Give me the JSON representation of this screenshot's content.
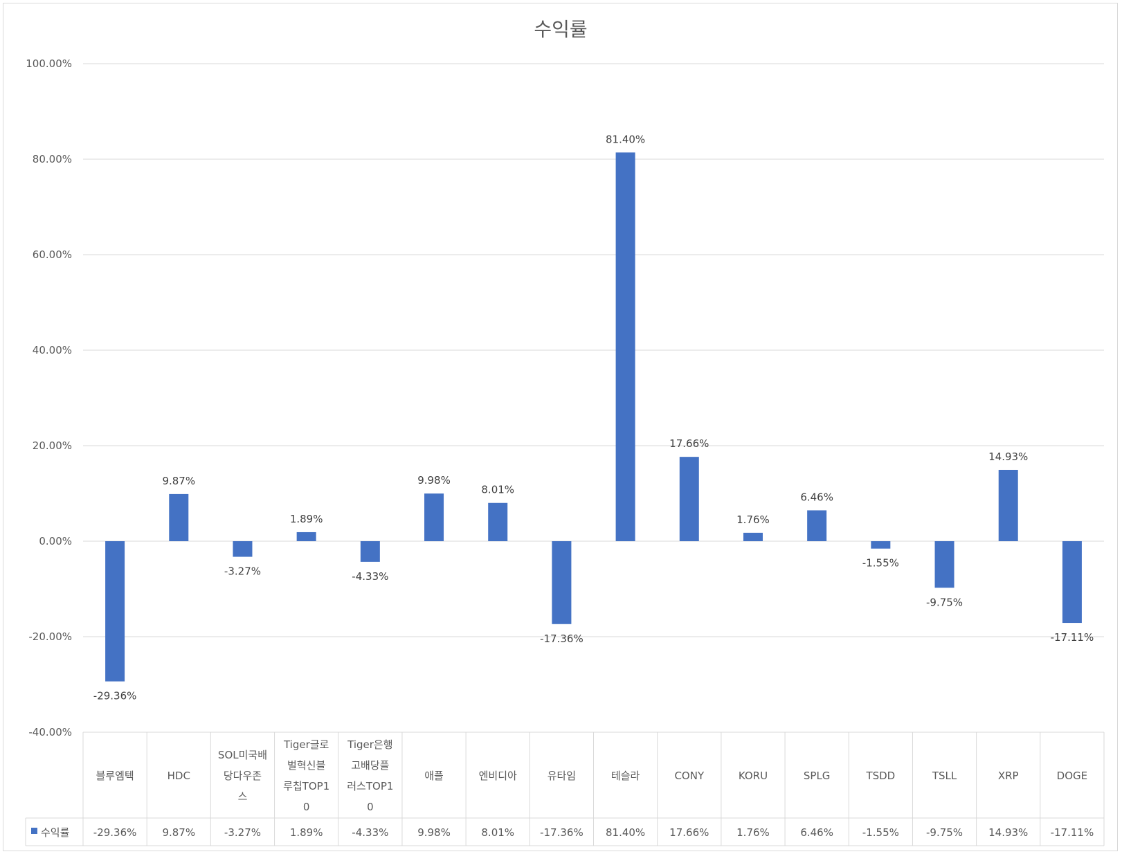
{
  "chart_data": {
    "type": "bar",
    "title": "수익률",
    "categories": [
      "블루엠텍",
      "HDC",
      "SOL미국배당다우존스",
      "Tiger글로벌혁신블루칩TOP10",
      "Tiger은행고배당플러스TOP10",
      "애플",
      "엔비디아",
      "유타임",
      "테슬라",
      "CONY",
      "KORU",
      "SPLG",
      "TSDD",
      "TSLL",
      "XRP",
      "DOGE"
    ],
    "category_lines": [
      [
        "블루엠텍"
      ],
      [
        "HDC"
      ],
      [
        "SOL미국배",
        "당다우존",
        "스"
      ],
      [
        "Tiger글로",
        "벌혁신블",
        "루칩TOP1",
        "0"
      ],
      [
        "Tiger은행",
        "고배당플",
        "러스TOP1",
        "0"
      ],
      [
        "애플"
      ],
      [
        "엔비디아"
      ],
      [
        "유타임"
      ],
      [
        "테슬라"
      ],
      [
        "CONY"
      ],
      [
        "KORU"
      ],
      [
        "SPLG"
      ],
      [
        "TSDD"
      ],
      [
        "TSLL"
      ],
      [
        "XRP"
      ],
      [
        "DOGE"
      ]
    ],
    "series": [
      {
        "name": "수익률",
        "color": "#4472c4",
        "values": [
          -29.36,
          9.87,
          -3.27,
          1.89,
          -4.33,
          9.98,
          8.01,
          -17.36,
          81.4,
          17.66,
          1.76,
          6.46,
          -1.55,
          -9.75,
          14.93,
          -17.11
        ],
        "labels": [
          "-29.36%",
          "9.87%",
          "-3.27%",
          "1.89%",
          "-4.33%",
          "9.98%",
          "8.01%",
          "-17.36%",
          "81.40%",
          "17.66%",
          "1.76%",
          "6.46%",
          "-1.55%",
          "-9.75%",
          "14.93%",
          "-17.11%"
        ]
      }
    ],
    "yticks": [
      "100.00%",
      "80.00%",
      "60.00%",
      "40.00%",
      "20.00%",
      "0.00%",
      "-20.00%",
      "-40.00%"
    ],
    "ylim": [
      -40,
      100
    ],
    "ytick_step": 20,
    "grid": true,
    "legend": "data table",
    "data_table": true
  },
  "colors": {
    "bar": "#4472c4",
    "grid": "#d9d9d9",
    "text": "#595959"
  }
}
